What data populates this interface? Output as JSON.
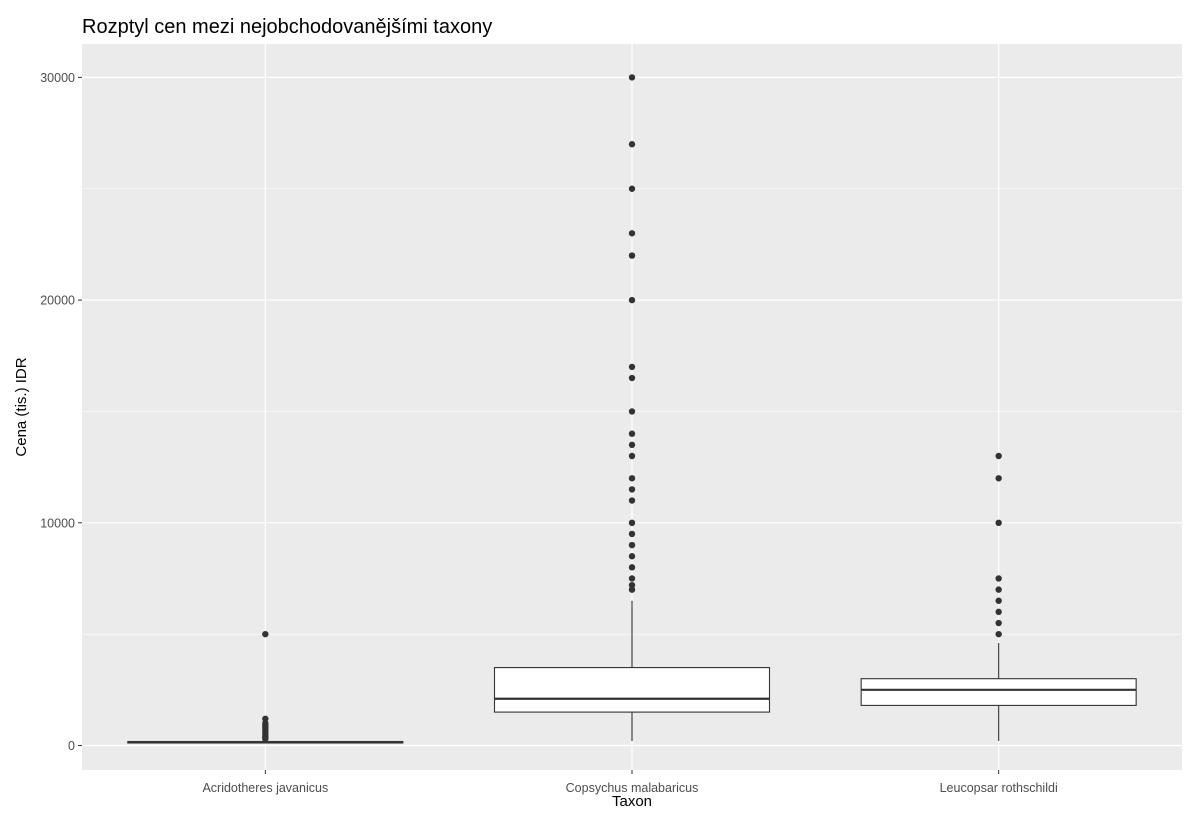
{
  "chart_data": {
    "type": "boxplot",
    "title": "Rozptyl cen mezi nejobchodovanějšími taxony",
    "xlabel": "Taxon",
    "ylabel": "Cena (tis.) IDR",
    "ylim": [
      -1100,
      31500
    ],
    "yticks": [
      0,
      10000,
      20000,
      30000
    ],
    "grid": true,
    "background": "#ebebeb",
    "grid_color": "#ffffff",
    "box_fill": "#ffffff",
    "line_color": "#333333",
    "categories": [
      "Acridotheres javanicus",
      "Copsychus malabaricus",
      "Leucopsar rothschildi"
    ],
    "boxes": [
      {
        "category": "Acridotheres javanicus",
        "whisker_low": 100,
        "q1": 130,
        "median": 150,
        "q3": 180,
        "whisker_high": 220,
        "outliers": [
          5000,
          1200,
          1000,
          900,
          800,
          700,
          600,
          500,
          400,
          350,
          300
        ]
      },
      {
        "category": "Copsychus malabaricus",
        "whisker_low": 200,
        "q1": 1500,
        "median": 2100,
        "q3": 3500,
        "whisker_high": 6500,
        "outliers": [
          30000,
          27000,
          25000,
          23000,
          22000,
          20000,
          17000,
          16500,
          15000,
          14000,
          13500,
          13000,
          12000,
          11500,
          11000,
          10000,
          9500,
          9000,
          8500,
          8000,
          7500,
          7200,
          7000
        ]
      },
      {
        "category": "Leucopsar rothschildi",
        "whisker_low": 200,
        "q1": 1800,
        "median": 2500,
        "q3": 3000,
        "whisker_high": 4600,
        "outliers": [
          13000,
          12000,
          10000,
          7500,
          7000,
          6500,
          6000,
          5500,
          5000
        ]
      }
    ]
  }
}
